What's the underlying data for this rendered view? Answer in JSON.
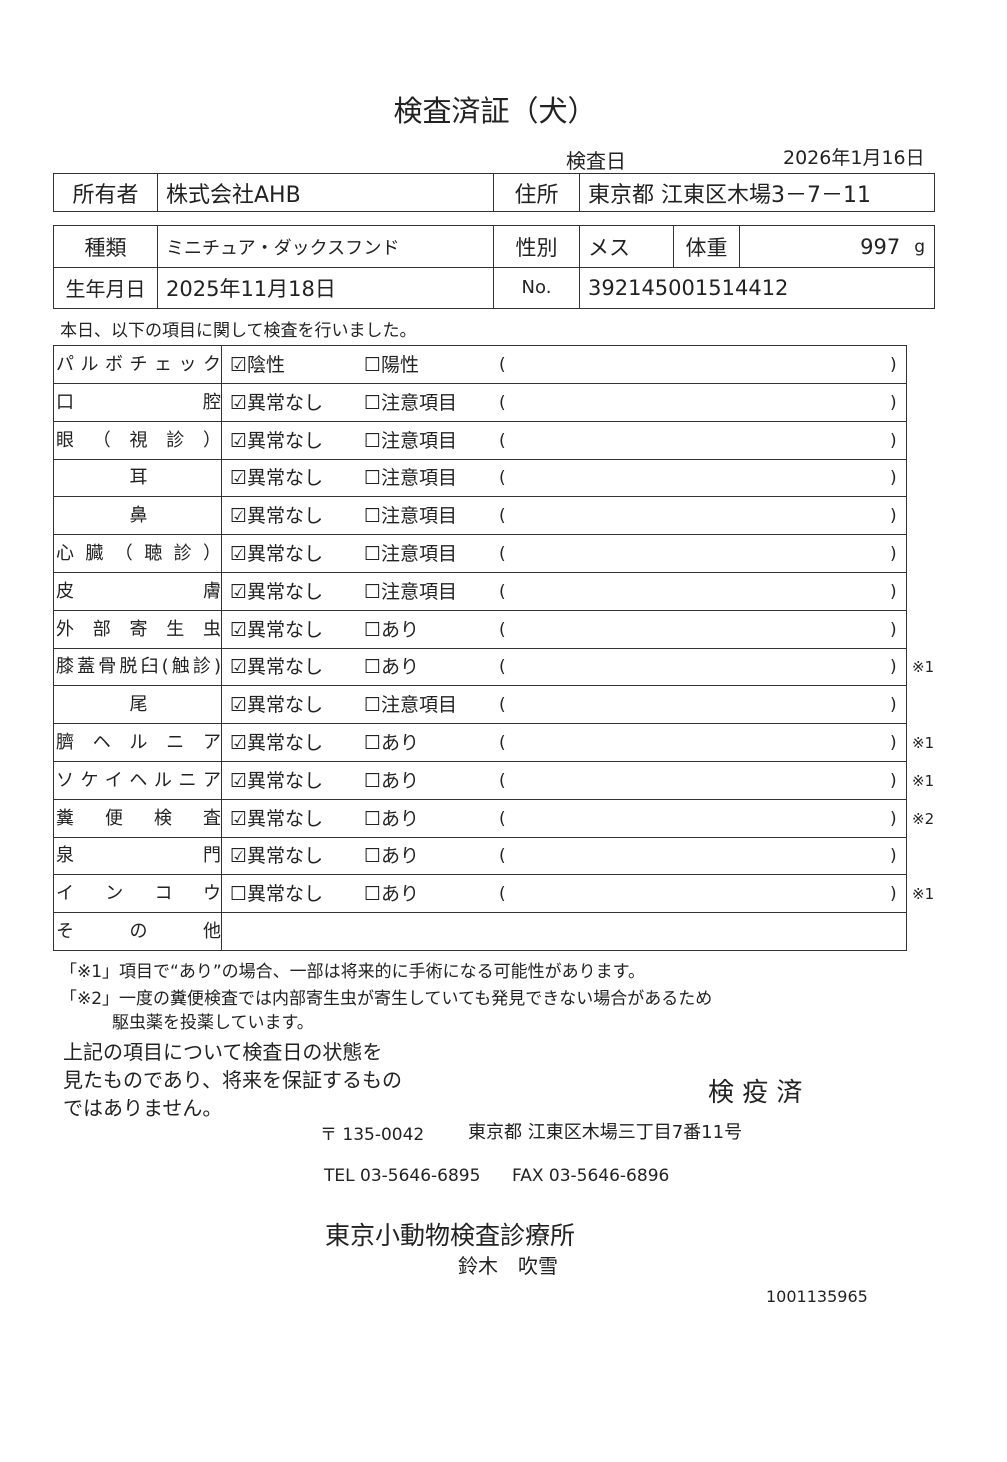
{
  "title": "検査済証（犬）",
  "exam_date_label": "検査日",
  "exam_date": "2026年1月16日",
  "owner": {
    "label": "所有者",
    "value": "株式会社AHB",
    "address_label": "住所",
    "address": "東京都 江東区木場3－7－11"
  },
  "pet": {
    "breed_label": "種類",
    "breed": "ミニチュア・ダックスフンド",
    "sex_label": "性別",
    "sex": "メス",
    "weight_label": "体重",
    "weight": "997",
    "weight_unit": "g",
    "birth_label": "生年月日",
    "birth": "2025年11月18日",
    "no_label": "No.",
    "no": "392145001514412"
  },
  "intro": "本日、以下の項目に関して検査を行いました。",
  "checks": [
    {
      "label": "パルボチェック",
      "opt1": "陰性",
      "opt2": "陽性",
      "checked": true,
      "note": ""
    },
    {
      "label": "口腔",
      "opt1": "異常なし",
      "opt2": "注意項目",
      "checked": true,
      "note": ""
    },
    {
      "label": "眼（視診）",
      "opt1": "異常なし",
      "opt2": "注意項目",
      "checked": true,
      "note": ""
    },
    {
      "label": "耳",
      "opt1": "異常なし",
      "opt2": "注意項目",
      "checked": true,
      "note": ""
    },
    {
      "label": "鼻",
      "opt1": "異常なし",
      "opt2": "注意項目",
      "checked": true,
      "note": ""
    },
    {
      "label": "心臓（聴診）",
      "opt1": "異常なし",
      "opt2": "注意項目",
      "checked": true,
      "note": ""
    },
    {
      "label": "皮膚",
      "opt1": "異常なし",
      "opt2": "注意項目",
      "checked": true,
      "note": ""
    },
    {
      "label": "外部寄生虫",
      "opt1": "異常なし",
      "opt2": "あり",
      "checked": true,
      "note": ""
    },
    {
      "label": "膝蓋骨脱臼(触診)",
      "opt1": "異常なし",
      "opt2": "あり",
      "checked": true,
      "note": "※1"
    },
    {
      "label": "尾",
      "opt1": "異常なし",
      "opt2": "注意項目",
      "checked": true,
      "note": ""
    },
    {
      "label": "臍ヘルニア",
      "opt1": "異常なし",
      "opt2": "あり",
      "checked": true,
      "note": "※1"
    },
    {
      "label": "ソケイヘルニア",
      "opt1": "異常なし",
      "opt2": "あり",
      "checked": true,
      "note": "※1"
    },
    {
      "label": "糞便検査",
      "opt1": "異常なし",
      "opt2": "あり",
      "checked": true,
      "note": "※2"
    },
    {
      "label": "泉門",
      "opt1": "異常なし",
      "opt2": "あり",
      "checked": true,
      "note": ""
    },
    {
      "label": "インコウ",
      "opt1": "異常なし",
      "opt2": "あり",
      "checked": false,
      "note": "※1"
    }
  ],
  "other_label": "その他",
  "paren_open": "(",
  "paren_close": ")",
  "footnote1": "「※1」項目で“あり”の場合、一部は将来的に手術になる可能性があります。",
  "footnote2_line1": "「※2」一度の糞便検査では内部寄生虫が寄生していても発見できない場合があるため",
  "footnote2_line2": "駆虫薬を投薬しています。",
  "disclaimer": [
    "上記の項目について検査日の状態を",
    "見たものであり、将来を保証するもの",
    "ではありません。"
  ],
  "stamp": "検 疫 済",
  "clinic": {
    "postal": "〒 135-0042",
    "address": "東京都 江東区木場三丁目7番11号",
    "tel": "TEL 03-5646-6895",
    "fax": "FAX 03-5646-6896",
    "name": "東京小動物検査診療所",
    "person": "鈴木　吹雪"
  },
  "doc_number": "1001135965"
}
